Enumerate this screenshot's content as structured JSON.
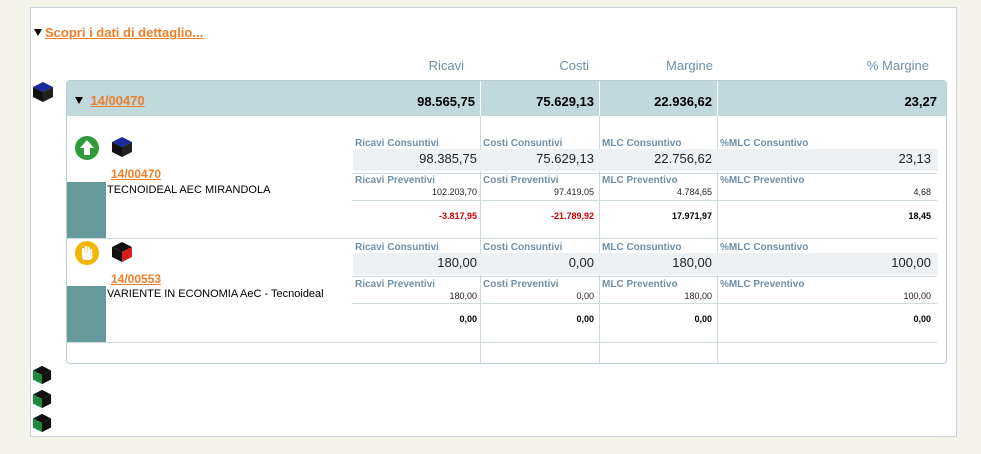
{
  "detail_link": "Scopri i dati di dettaglio...",
  "columns": {
    "ricavi": "Ricavi",
    "costi": "Costi",
    "margine": "Margine",
    "pct_margine": "% Margine"
  },
  "group": {
    "code": "14/00470",
    "totals": {
      "ricavi": "98.565,75",
      "costi": "75.629,13",
      "margine": "22.936,62",
      "pct": "23,27"
    }
  },
  "rows": [
    {
      "code": "14/00470",
      "name": "TECNOIDEAL AEC MIRANDOLA",
      "status_icon": "arrow-up-icon",
      "status_color": "#2e9b3a",
      "labels": {
        "rc": "Ricavi Consuntivi",
        "cc": "Costi Consuntivi",
        "mc": "MLC Consuntivo",
        "pc": "%MLC Consuntivo",
        "rp": "Ricavi Preventivi",
        "cp": "Costi Preventivi",
        "mp": "MLC Preventivo",
        "pp": "%MLC Preventivo"
      },
      "consuntivi": {
        "ricavi": "98.385,75",
        "costi": "75.629,13",
        "mlc": "22.756,62",
        "pct": "23,13"
      },
      "preventivi": {
        "ricavi": "102.203,70",
        "costi": "97.419,05",
        "mlc": "4.784,65",
        "pct": "4,68"
      },
      "diff": {
        "ricavi": "-3.817,95",
        "costi": "-21.789,92",
        "mlc": "17.971,97",
        "pct": "18,45"
      }
    },
    {
      "code": "14/00553",
      "name": "VARIENTE IN ECONOMIA AeC - Tecnoideal",
      "status_icon": "hand-stop-icon",
      "status_color": "#f2b705",
      "labels": {
        "rc": "Ricavi Consuntivi",
        "cc": "Costi Consuntivi",
        "mc": "MLC Consuntivo",
        "pc": "%MLC Consuntivo",
        "rp": "Ricavi Preventivi",
        "cp": "Costi Preventivi",
        "mp": "MLC Preventivo",
        "pp": "%MLC Preventivo"
      },
      "consuntivi": {
        "ricavi": "180,00",
        "costi": "0,00",
        "mlc": "180,00",
        "pct": "100,00"
      },
      "preventivi": {
        "ricavi": "180,00",
        "costi": "0,00",
        "mlc": "180,00",
        "pct": "100,00"
      },
      "diff": {
        "ricavi": "0,00",
        "costi": "0,00",
        "mlc": "0,00",
        "pct": "0,00"
      }
    }
  ],
  "colors": {
    "accent": "#f07d2a",
    "header_bg": "#bfd9dc",
    "label": "#6f8fa6",
    "negative": "#cc0000",
    "swatch": "#66999a"
  }
}
